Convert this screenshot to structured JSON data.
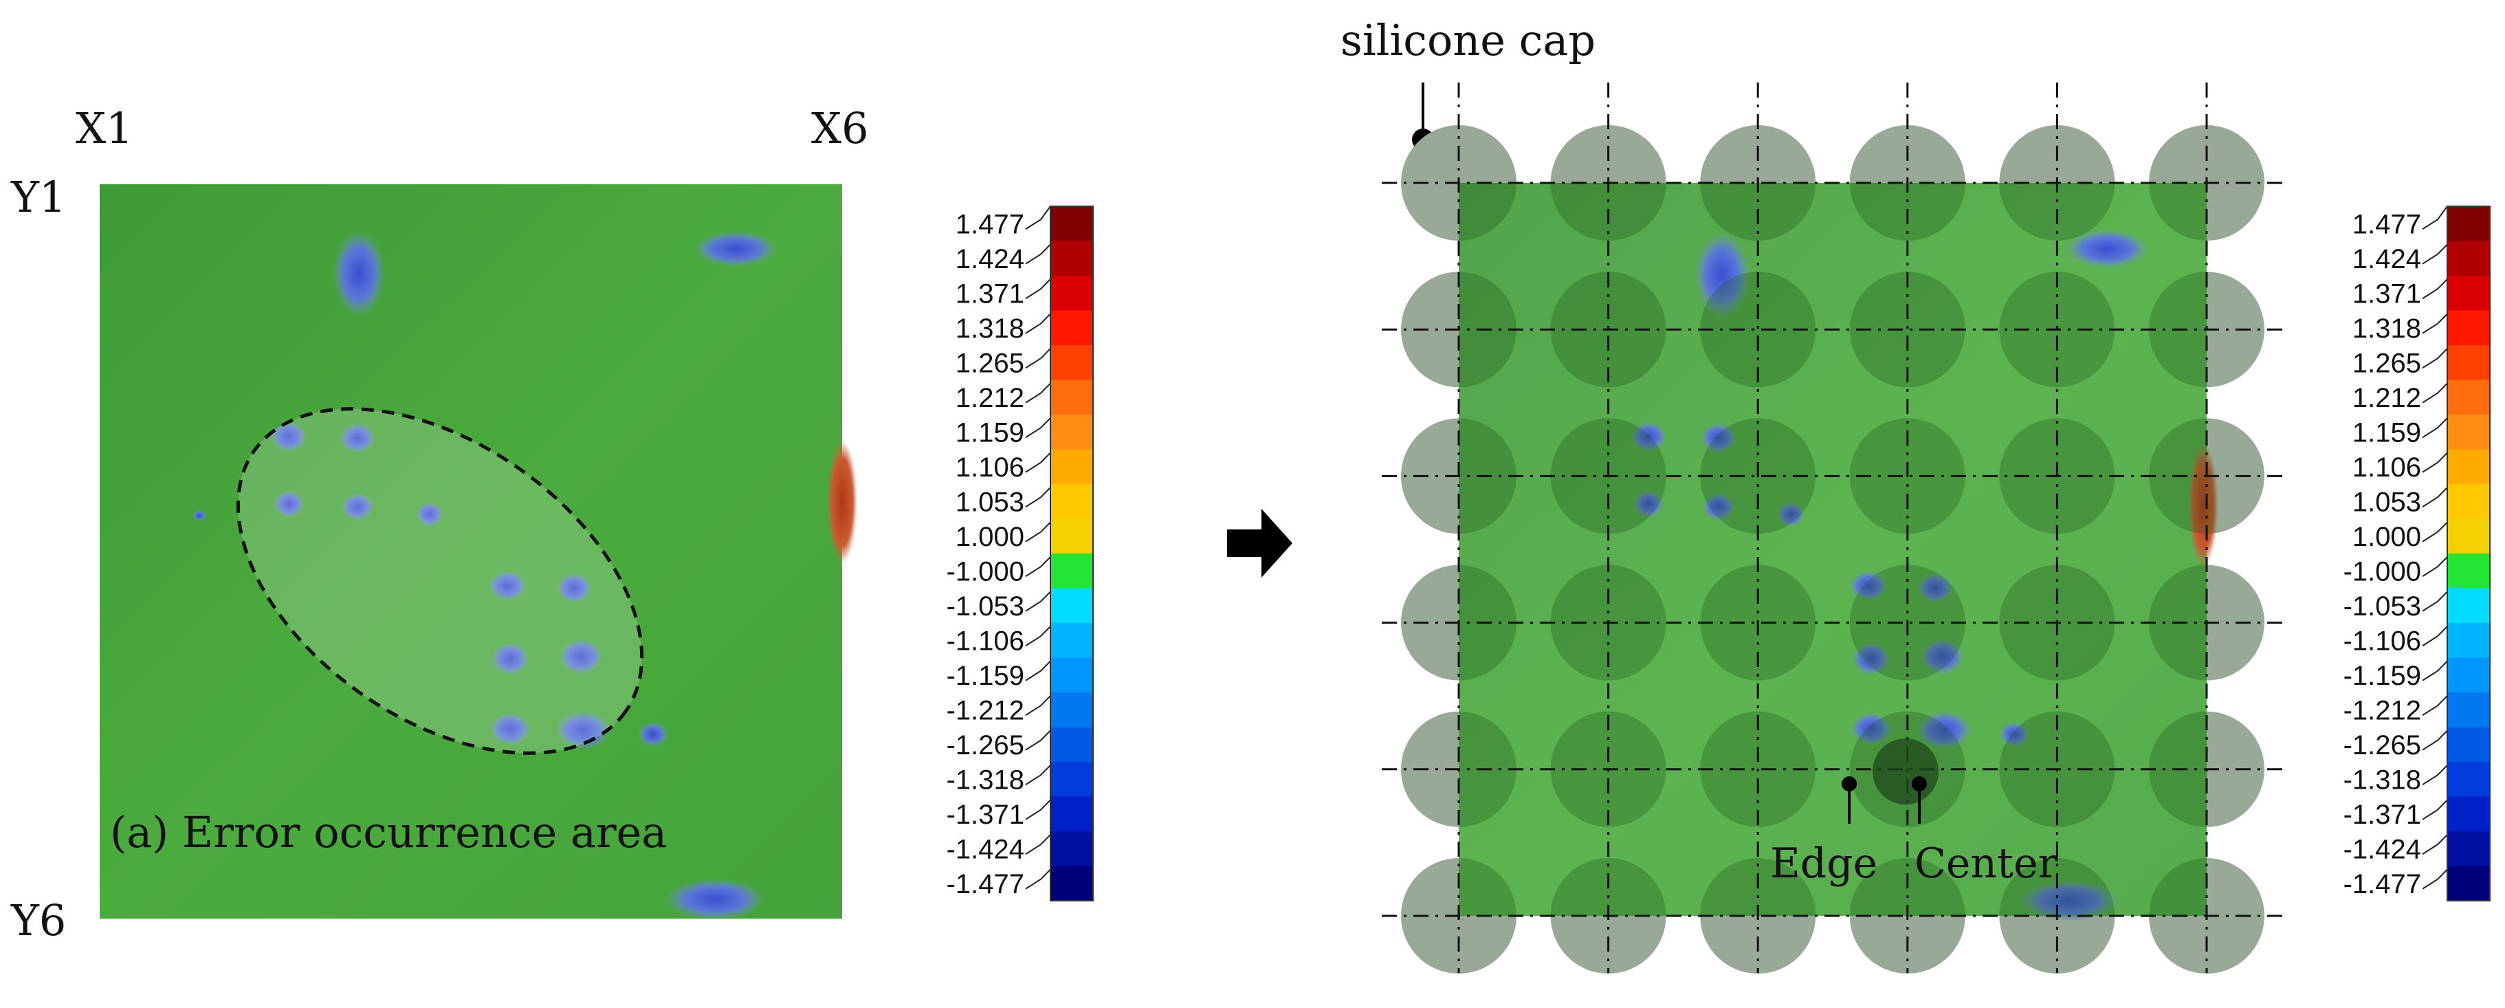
{
  "left_panel": {
    "corner_labels": {
      "top_left_x": "X1",
      "top_right_x": "X6",
      "top_y": "Y1",
      "bottom_y": "Y6"
    },
    "caption": "(a) Error occurrence area"
  },
  "right_panel": {
    "silicone_cap_label": "silicone cap",
    "edge_label": "Edge",
    "center_label": "Center",
    "grid": {
      "rows": 6,
      "cols": 6
    }
  },
  "arrow_icon": "right-arrow-icon",
  "colorbar": {
    "values": [
      "1.477",
      "1.424",
      "1.371",
      "1.318",
      "1.265",
      "1.212",
      "1.159",
      "1.106",
      "1.053",
      "1.000",
      "-1.000",
      "-1.053",
      "-1.106",
      "-1.159",
      "-1.212",
      "-1.265",
      "-1.318",
      "-1.371",
      "-1.424",
      "-1.477"
    ],
    "colors": [
      "#800000",
      "#b00000",
      "#d80000",
      "#ff1800",
      "#ff4000",
      "#ff6e0e",
      "#ff8c14",
      "#ffaa00",
      "#ffc800",
      "#f5d000",
      "#22e633",
      "#00dcff",
      "#00b4ff",
      "#0096ff",
      "#0078f0",
      "#005ae6",
      "#003cdc",
      "#0020c8",
      "#0010a0",
      "#00007a"
    ]
  },
  "colors": {
    "field_green": "#4aa63a",
    "deviation_blue": "#4a6ad8",
    "deviation_red": "#c04428"
  }
}
